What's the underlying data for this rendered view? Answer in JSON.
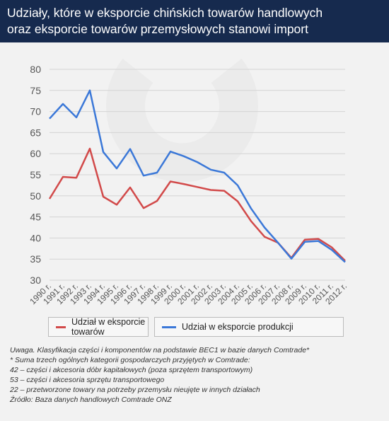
{
  "header": {
    "title_line1": "Udziały, które w eksporcie chińskich towarów handlowych",
    "title_line2": "oraz eksporcie towarów przemysłowych stanowi import"
  },
  "colors": {
    "header_bg": "#162a4e",
    "red_series": "#d24a4a",
    "blue_series": "#3b78d8"
  },
  "chart_data": {
    "type": "line",
    "x": [
      "1990 r.",
      "1991 r.",
      "1992 r.",
      "1993 r.",
      "1994 r.",
      "1995 r.",
      "1996 r.",
      "1997 r.",
      "1998 r.",
      "1999 r.",
      "2000 r.",
      "2001 r.",
      "2002 r.",
      "2003 r.",
      "2004 r.",
      "2005 r.",
      "2006 r.",
      "2007 r.",
      "2008 r.",
      "2009 r.",
      "2010 r.",
      "2011 r.",
      "2012 r."
    ],
    "yticks": [
      30,
      35,
      40,
      45,
      50,
      55,
      60,
      65,
      70,
      75,
      80
    ],
    "ylim": [
      30,
      80
    ],
    "grid": true,
    "legend_position": "bottom",
    "series": [
      {
        "name": "Udział w eksporcie towarów",
        "color": "#d24a4a",
        "values": [
          49.3,
          54.5,
          54.3,
          61.2,
          49.8,
          47.9,
          52.0,
          47.1,
          48.8,
          53.4,
          52.8,
          52.1,
          51.4,
          51.2,
          48.7,
          44.0,
          40.3,
          38.9,
          35.3,
          39.6,
          39.8,
          37.8,
          34.6
        ]
      },
      {
        "name": "Udział w eksporcie produkcji",
        "color": "#3b78d8",
        "values": [
          68.3,
          71.8,
          68.6,
          75.0,
          60.4,
          56.5,
          61.1,
          54.8,
          55.5,
          60.5,
          59.4,
          58.0,
          56.2,
          55.5,
          52.5,
          47.0,
          42.5,
          38.9,
          35.1,
          39.1,
          39.3,
          37.2,
          34.3
        ]
      }
    ]
  },
  "notes": {
    "line1": "Uwaga. Klasyfikacja części i komponentów na podstawie BEC1 w bazie danych Comtrade*",
    "line2": "* Suma trzech ogólnych kategorii gospodarczych przyjętych w Comtrade:",
    "line3": "42 – części i akcesoria dóbr kapitałowych (poza sprzętem transportowym)",
    "line4": "53 – części i akcesoria sprzętu transportowego",
    "line5": "22 – przetworzone towary na potrzeby przemysłu nieujęte w innych działach",
    "line6": "Źródło: Baza danych handlowych Comtrade ONZ"
  }
}
